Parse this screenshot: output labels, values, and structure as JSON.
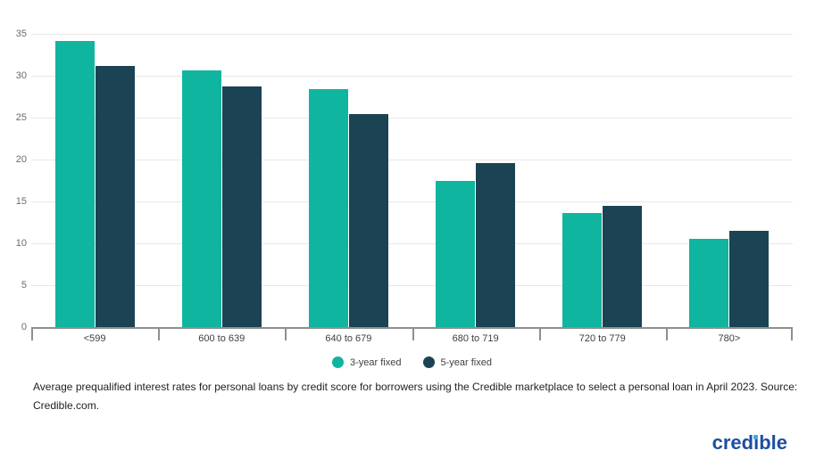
{
  "chart_data": {
    "type": "bar",
    "title": "",
    "categories": [
      "<599",
      "600 to 639",
      "640 to 679",
      "680 to 719",
      "720 to 779",
      "780>"
    ],
    "series": [
      {
        "name": "3-year fixed",
        "color": "#10b5a0",
        "values": [
          34.1,
          30.6,
          28.4,
          17.4,
          13.6,
          10.5
        ]
      },
      {
        "name": "5-year fixed",
        "color": "#1b4353",
        "values": [
          31.2,
          28.7,
          25.4,
          19.6,
          14.5,
          11.5
        ]
      }
    ],
    "xlabel": "",
    "ylabel": "",
    "ylim": [
      0,
      35
    ],
    "ytick_step": 5,
    "yticks": [
      0,
      5,
      10,
      15,
      20,
      25,
      30,
      35
    ],
    "grid": true,
    "legend_position": "bottom"
  },
  "caption": "Average prequalified interest rates for personal loans by credit score for borrowers using the Credible marketplace to select a personal loan in April 2023. Source: Credible.com.",
  "logo": {
    "text": "credible",
    "color": "#1d4fa1",
    "dot_color": "#49a8df"
  },
  "colors": {
    "axis": "#8f8f8f",
    "gridline": "#e8e8e8",
    "background": "#ffffff"
  }
}
